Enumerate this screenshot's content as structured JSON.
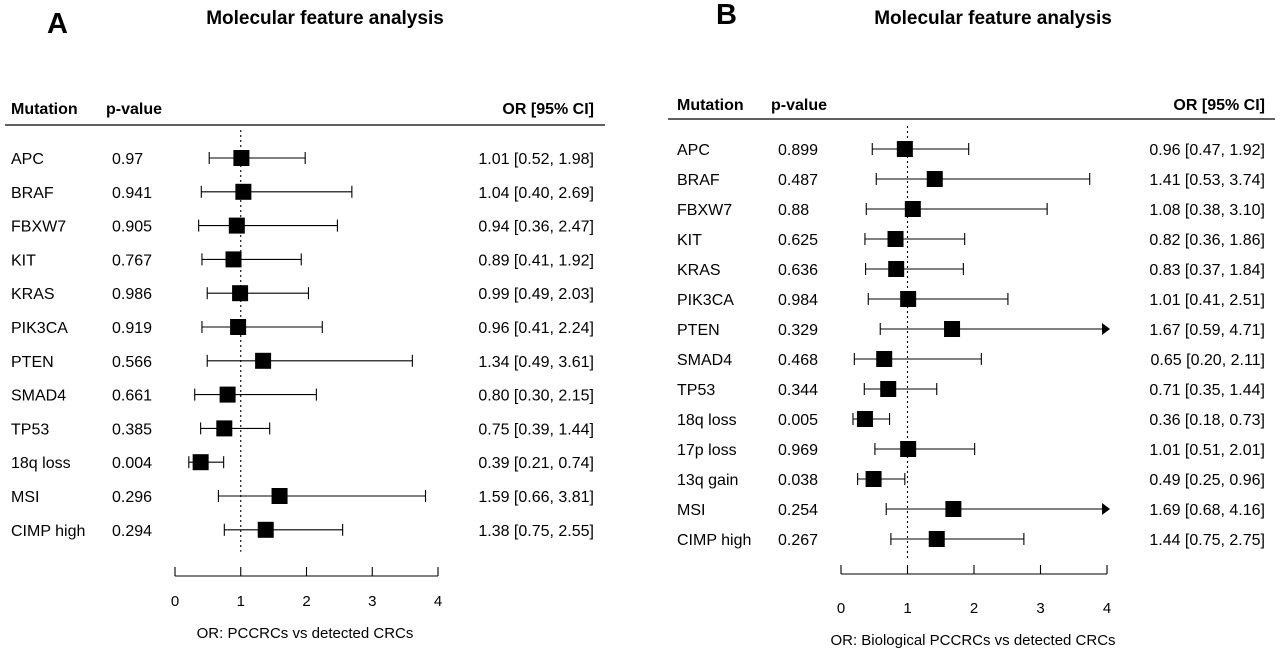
{
  "chart_data": [
    {
      "type": "forest",
      "panel": "A",
      "title": "Molecular feature analysis",
      "headers": {
        "mutation": "Mutation",
        "pvalue": "p-value",
        "or": "OR [95% CI]"
      },
      "xlabel": "OR: PCCRCs vs detected CRCs",
      "xlim": [
        0,
        4
      ],
      "ticks": [
        "0",
        "1",
        "2",
        "3",
        "4"
      ],
      "reference_line": 1,
      "rows": [
        {
          "mutation": "APC",
          "pvalue": "0.97",
          "or": 1.01,
          "lo": 0.52,
          "hi": 1.98,
          "or_text": "1.01 [0.52, 1.98]"
        },
        {
          "mutation": "BRAF",
          "pvalue": "0.941",
          "or": 1.04,
          "lo": 0.4,
          "hi": 2.69,
          "or_text": "1.04 [0.40, 2.69]"
        },
        {
          "mutation": "FBXW7",
          "pvalue": "0.905",
          "or": 0.94,
          "lo": 0.36,
          "hi": 2.47,
          "or_text": "0.94 [0.36, 2.47]"
        },
        {
          "mutation": "KIT",
          "pvalue": "0.767",
          "or": 0.89,
          "lo": 0.41,
          "hi": 1.92,
          "or_text": "0.89 [0.41, 1.92]"
        },
        {
          "mutation": "KRAS",
          "pvalue": "0.986",
          "or": 0.99,
          "lo": 0.49,
          "hi": 2.03,
          "or_text": "0.99 [0.49, 2.03]"
        },
        {
          "mutation": "PIK3CA",
          "pvalue": "0.919",
          "or": 0.96,
          "lo": 0.41,
          "hi": 2.24,
          "or_text": "0.96 [0.41, 2.24]"
        },
        {
          "mutation": "PTEN",
          "pvalue": "0.566",
          "or": 1.34,
          "lo": 0.49,
          "hi": 3.61,
          "or_text": "1.34 [0.49, 3.61]"
        },
        {
          "mutation": "SMAD4",
          "pvalue": "0.661",
          "or": 0.8,
          "lo": 0.3,
          "hi": 2.15,
          "or_text": "0.80 [0.30, 2.15]"
        },
        {
          "mutation": "TP53",
          "pvalue": "0.385",
          "or": 0.75,
          "lo": 0.39,
          "hi": 1.44,
          "or_text": "0.75 [0.39, 1.44]"
        },
        {
          "mutation": "18q loss",
          "pvalue": "0.004",
          "or": 0.39,
          "lo": 0.21,
          "hi": 0.74,
          "or_text": "0.39 [0.21, 0.74]"
        },
        {
          "mutation": "MSI",
          "pvalue": "0.296",
          "or": 1.59,
          "lo": 0.66,
          "hi": 3.81,
          "or_text": "1.59 [0.66, 3.81]"
        },
        {
          "mutation": "CIMP high",
          "pvalue": "0.294",
          "or": 1.38,
          "lo": 0.75,
          "hi": 2.55,
          "or_text": "1.38 [0.75, 2.55]"
        }
      ]
    },
    {
      "type": "forest",
      "panel": "B",
      "title": "Molecular feature analysis",
      "headers": {
        "mutation": "Mutation",
        "pvalue": "p-value",
        "or": "OR [95% CI]"
      },
      "xlabel": "OR: Biological PCCRCs vs detected CRCs",
      "xlim": [
        0,
        4
      ],
      "ticks": [
        "0",
        "1",
        "2",
        "3",
        "4"
      ],
      "reference_line": 1,
      "rows": [
        {
          "mutation": "APC",
          "pvalue": "0.899",
          "or": 0.96,
          "lo": 0.47,
          "hi": 1.92,
          "or_text": "0.96 [0.47, 1.92]"
        },
        {
          "mutation": "BRAF",
          "pvalue": "0.487",
          "or": 1.41,
          "lo": 0.53,
          "hi": 3.74,
          "or_text": "1.41 [0.53, 3.74]"
        },
        {
          "mutation": "FBXW7",
          "pvalue": "0.88",
          "or": 1.08,
          "lo": 0.38,
          "hi": 3.1,
          "or_text": "1.08 [0.38, 3.10]"
        },
        {
          "mutation": "KIT",
          "pvalue": "0.625",
          "or": 0.82,
          "lo": 0.36,
          "hi": 1.86,
          "or_text": "0.82 [0.36, 1.86]"
        },
        {
          "mutation": "KRAS",
          "pvalue": "0.636",
          "or": 0.83,
          "lo": 0.37,
          "hi": 1.84,
          "or_text": "0.83 [0.37, 1.84]"
        },
        {
          "mutation": "PIK3CA",
          "pvalue": "0.984",
          "or": 1.01,
          "lo": 0.41,
          "hi": 2.51,
          "or_text": "1.01 [0.41, 2.51]"
        },
        {
          "mutation": "PTEN",
          "pvalue": "0.329",
          "or": 1.67,
          "lo": 0.59,
          "hi": 4.71,
          "or_text": "1.67 [0.59, 4.71]"
        },
        {
          "mutation": "SMAD4",
          "pvalue": "0.468",
          "or": 0.65,
          "lo": 0.2,
          "hi": 2.11,
          "or_text": "0.65 [0.20, 2.11]"
        },
        {
          "mutation": "TP53",
          "pvalue": "0.344",
          "or": 0.71,
          "lo": 0.35,
          "hi": 1.44,
          "or_text": "0.71 [0.35, 1.44]"
        },
        {
          "mutation": "18q loss",
          "pvalue": "0.005",
          "or": 0.36,
          "lo": 0.18,
          "hi": 0.73,
          "or_text": "0.36 [0.18, 0.73]"
        },
        {
          "mutation": "17p loss",
          "pvalue": "0.969",
          "or": 1.01,
          "lo": 0.51,
          "hi": 2.01,
          "or_text": "1.01 [0.51, 2.01]"
        },
        {
          "mutation": "13q gain",
          "pvalue": "0.038",
          "or": 0.49,
          "lo": 0.25,
          "hi": 0.96,
          "or_text": "0.49 [0.25, 0.96]"
        },
        {
          "mutation": "MSI",
          "pvalue": "0.254",
          "or": 1.69,
          "lo": 0.68,
          "hi": 4.16,
          "or_text": "1.69 [0.68, 4.16]"
        },
        {
          "mutation": "CIMP high",
          "pvalue": "0.267",
          "or": 1.44,
          "lo": 0.75,
          "hi": 2.75,
          "or_text": "1.44 [0.75, 2.75]"
        }
      ]
    }
  ]
}
